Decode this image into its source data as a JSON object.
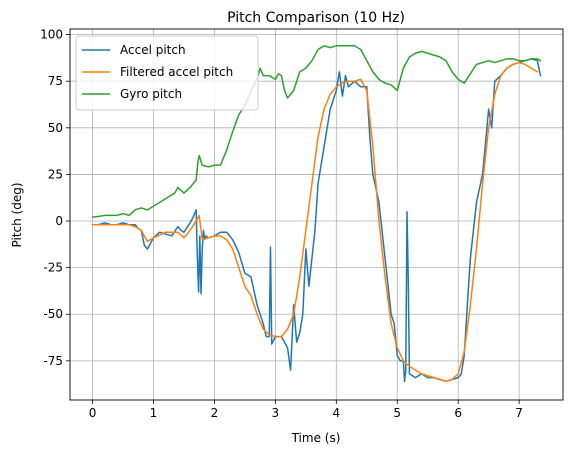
{
  "chart_data": {
    "type": "line",
    "title": "Pitch Comparison (10 Hz)",
    "xlabel": "Time (s)",
    "ylabel": "Pitch (deg)",
    "xlim": [
      -0.37,
      7.72
    ],
    "ylim": [
      -96,
      103
    ],
    "x_ticks": [
      0,
      1,
      2,
      3,
      4,
      5,
      6,
      7
    ],
    "y_ticks": [
      -75,
      -50,
      -25,
      0,
      25,
      50,
      75,
      100
    ],
    "grid": true,
    "legend_position": "top-left",
    "series": [
      {
        "name": "Accel pitch",
        "color": "#1f77b4",
        "x": [
          0,
          0.1,
          0.2,
          0.3,
          0.4,
          0.5,
          0.6,
          0.7,
          0.75,
          0.8,
          0.85,
          0.9,
          1.0,
          1.1,
          1.2,
          1.3,
          1.4,
          1.45,
          1.5,
          1.6,
          1.65,
          1.7,
          1.72,
          1.74,
          1.76,
          1.78,
          1.8,
          1.82,
          1.84,
          1.86,
          1.9,
          2.0,
          2.1,
          2.2,
          2.3,
          2.4,
          2.5,
          2.6,
          2.7,
          2.8,
          2.85,
          2.9,
          2.92,
          2.94,
          3.0,
          3.1,
          3.2,
          3.25,
          3.3,
          3.35,
          3.4,
          3.45,
          3.5,
          3.55,
          3.6,
          3.65,
          3.7,
          3.8,
          3.9,
          4.0,
          4.05,
          4.1,
          4.15,
          4.2,
          4.3,
          4.4,
          4.5,
          4.55,
          4.6,
          4.7,
          4.8,
          4.85,
          4.9,
          4.95,
          5.0,
          5.05,
          5.1,
          5.12,
          5.14,
          5.16,
          5.18,
          5.2,
          5.3,
          5.4,
          5.5,
          5.6,
          5.7,
          5.8,
          5.9,
          6.0,
          6.05,
          6.1,
          6.15,
          6.2,
          6.3,
          6.4,
          6.5,
          6.55,
          6.6,
          6.7,
          6.8,
          6.9,
          7.0,
          7.1,
          7.2,
          7.3,
          7.35
        ],
        "y": [
          -2,
          -2,
          -1,
          -2,
          -2,
          -1,
          -2,
          -2,
          -4,
          -5,
          -13,
          -15,
          -9,
          -6,
          -7,
          -8,
          -3,
          -5,
          -6,
          -1,
          2,
          6,
          -20,
          -38,
          -8,
          -39,
          -15,
          -5,
          -10,
          -8,
          -9,
          -8,
          -6,
          -6,
          -10,
          -17,
          -28,
          -30,
          -45,
          -55,
          -62,
          -62,
          -14,
          -66,
          -62,
          -62,
          -68,
          -80,
          -45,
          -65,
          -60,
          -50,
          -15,
          -35,
          -20,
          -5,
          20,
          40,
          60,
          70,
          80,
          67,
          78,
          72,
          75,
          72,
          72,
          45,
          25,
          10,
          -20,
          -35,
          -50,
          -55,
          -72,
          -75,
          -75,
          -86,
          -80,
          5,
          -30,
          -82,
          -84,
          -82,
          -84,
          -84,
          -85,
          -86,
          -85,
          -84,
          -82,
          -72,
          -45,
          -20,
          10,
          25,
          60,
          50,
          75,
          78,
          82,
          84,
          85,
          86,
          87,
          86,
          78
        ]
      },
      {
        "name": "Filtered accel pitch",
        "color": "#ff7f0e",
        "x": [
          0,
          0.2,
          0.4,
          0.6,
          0.7,
          0.8,
          0.9,
          1.0,
          1.2,
          1.4,
          1.5,
          1.6,
          1.7,
          1.75,
          1.8,
          1.9,
          2.0,
          2.1,
          2.2,
          2.3,
          2.4,
          2.5,
          2.6,
          2.7,
          2.8,
          2.9,
          3.0,
          3.1,
          3.2,
          3.3,
          3.4,
          3.5,
          3.6,
          3.7,
          3.8,
          3.9,
          4.0,
          4.1,
          4.2,
          4.3,
          4.4,
          4.5,
          4.6,
          4.7,
          4.8,
          4.9,
          5.0,
          5.1,
          5.2,
          5.3,
          5.4,
          5.5,
          5.6,
          5.7,
          5.8,
          5.9,
          6.0,
          6.1,
          6.2,
          6.3,
          6.4,
          6.5,
          6.6,
          6.7,
          6.8,
          6.9,
          7.0,
          7.1,
          7.2,
          7.3
        ],
        "y": [
          -2,
          -2,
          -2,
          -2,
          -3,
          -5,
          -11,
          -9,
          -6,
          -6,
          -9,
          -5,
          0,
          3,
          -10,
          -9,
          -8,
          -8,
          -10,
          -15,
          -25,
          -35,
          -40,
          -50,
          -58,
          -61,
          -62,
          -62,
          -58,
          -50,
          -30,
          -5,
          20,
          45,
          60,
          68,
          72,
          74,
          75,
          75,
          76,
          70,
          40,
          0,
          -30,
          -55,
          -68,
          -75,
          -78,
          -80,
          -82,
          -83,
          -84,
          -85,
          -86,
          -85,
          -82,
          -70,
          -45,
          -15,
          20,
          50,
          68,
          78,
          82,
          84,
          85,
          84,
          82,
          80
        ]
      },
      {
        "name": "Gyro pitch",
        "color": "#2ca02c",
        "x": [
          0,
          0.2,
          0.4,
          0.5,
          0.6,
          0.7,
          0.8,
          0.9,
          1.0,
          1.1,
          1.2,
          1.3,
          1.35,
          1.4,
          1.5,
          1.6,
          1.7,
          1.73,
          1.75,
          1.8,
          1.9,
          2.0,
          2.1,
          2.2,
          2.3,
          2.4,
          2.5,
          2.6,
          2.7,
          2.75,
          2.8,
          2.9,
          3.0,
          3.05,
          3.1,
          3.15,
          3.2,
          3.3,
          3.4,
          3.5,
          3.6,
          3.7,
          3.8,
          3.9,
          4.0,
          4.1,
          4.2,
          4.3,
          4.4,
          4.5,
          4.6,
          4.7,
          4.8,
          4.9,
          5.0,
          5.05,
          5.1,
          5.2,
          5.3,
          5.4,
          5.5,
          5.6,
          5.7,
          5.8,
          5.9,
          6.0,
          6.1,
          6.2,
          6.3,
          6.4,
          6.5,
          6.6,
          6.7,
          6.8,
          6.9,
          7.0,
          7.1,
          7.2,
          7.3,
          7.35
        ],
        "y": [
          2,
          3,
          3,
          4,
          3,
          6,
          7,
          6,
          8,
          10,
          12,
          14,
          15,
          18,
          15,
          18,
          22,
          32,
          35,
          30,
          29,
          30,
          30,
          38,
          48,
          57,
          62,
          70,
          76,
          82,
          78,
          78,
          76,
          79,
          78,
          70,
          66,
          70,
          80,
          82,
          86,
          92,
          94,
          93,
          94,
          94,
          94,
          94,
          92,
          86,
          80,
          76,
          74,
          73,
          70,
          76,
          82,
          88,
          90,
          91,
          90,
          89,
          88,
          86,
          80,
          76,
          74,
          79,
          84,
          85,
          86,
          85,
          86,
          87,
          87,
          86,
          86,
          87,
          87,
          86
        ]
      }
    ]
  }
}
